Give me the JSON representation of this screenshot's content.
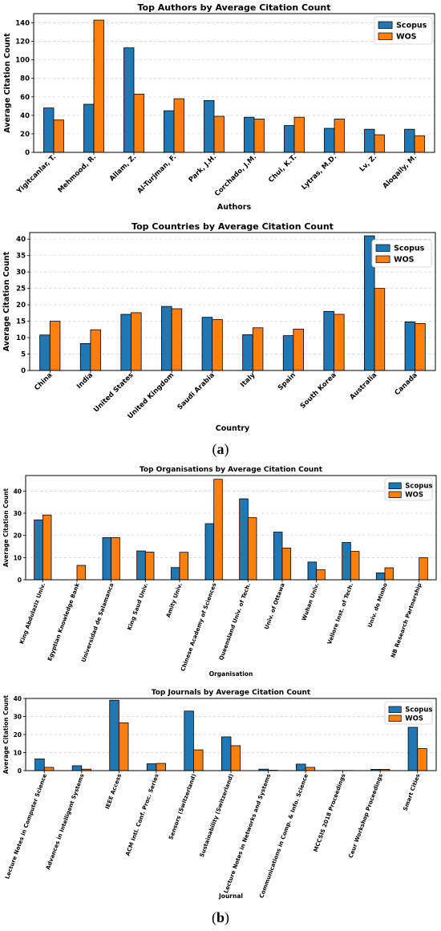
{
  "colors": {
    "scopus": "#1f77b4",
    "wos": "#ff7f0e",
    "grid": "#cccccc"
  },
  "captions": {
    "a": "(a)",
    "b": "(b)"
  },
  "chart_data": [
    {
      "type": "bar",
      "title": "Top Authors by Average Citation Count",
      "xlabel": "Authors",
      "ylabel": "Average Citation Count",
      "ylim": [
        0,
        150
      ],
      "yticks": [
        0,
        20,
        40,
        60,
        80,
        100,
        120,
        140
      ],
      "grid": "horizontal dashed",
      "legend": "top-right",
      "categories": [
        "Yigitcanlar, T.",
        "Mehmood, R.",
        "Allam, Z.",
        "Al-Turjman, F.",
        "Park, J.H.",
        "Corchado, J.M.",
        "Chui, K.T.",
        "Lytras, M.D.",
        "Lv, Z.",
        "Aloqaily, M."
      ],
      "series": [
        {
          "name": "Scopus",
          "values": [
            48,
            52,
            113,
            45,
            56,
            38,
            29,
            26,
            25,
            25
          ]
        },
        {
          "name": "WOS",
          "values": [
            35,
            143,
            63,
            58,
            39,
            36,
            38,
            36,
            19,
            18
          ]
        }
      ]
    },
    {
      "type": "bar",
      "title": "Top Countries by Average Citation Count",
      "xlabel": "Country",
      "ylabel": "Average Citation Count",
      "ylim": [
        0,
        42
      ],
      "yticks": [
        0,
        5,
        10,
        15,
        20,
        25,
        30,
        35,
        40
      ],
      "grid": "horizontal dashed",
      "legend": "top-right",
      "categories": [
        "China",
        "India",
        "United States",
        "United Kingdom",
        "Saudi Arabia",
        "Italy",
        "Spain",
        "South Korea",
        "Australia",
        "Canada"
      ],
      "series": [
        {
          "name": "Scopus",
          "values": [
            10.8,
            8.2,
            17.1,
            19.5,
            16.2,
            10.9,
            10.6,
            18.0,
            41.0,
            14.8
          ]
        },
        {
          "name": "WOS",
          "values": [
            15.0,
            12.4,
            17.6,
            18.8,
            15.5,
            13.0,
            12.6,
            17.1,
            25.0,
            14.3
          ]
        }
      ]
    },
    {
      "type": "bar",
      "title": "Top Organisations by Average Citation Count",
      "xlabel": "Organisation",
      "ylabel": "Average Citation Count",
      "ylim": [
        0,
        47
      ],
      "yticks": [
        0,
        10,
        20,
        30,
        40
      ],
      "grid": "horizontal dashed",
      "legend": "top-right",
      "categories": [
        "King Abdulaziz Univ.",
        "Egyptian Knowledge Bank",
        "Universidad de Salamanca",
        "King Saud Univ.",
        "Amity Univ.",
        "Chinese Academy of Sciences",
        "Queensland Univ. of Tech.",
        "Univ. of Ottawa",
        "Wuhan Univ.",
        "Vellore Inst. of Tech.",
        "Univ. do Minho",
        "NB Research Partnership"
      ],
      "series": [
        {
          "name": "Scopus",
          "values": [
            27,
            0,
            19,
            13,
            5.5,
            25.3,
            36.5,
            21.5,
            8,
            16.8,
            3.1,
            0
          ]
        },
        {
          "name": "WOS",
          "values": [
            29.2,
            6.5,
            19,
            12.5,
            12.4,
            45.3,
            28,
            14.3,
            4.5,
            12.8,
            5.4,
            10
          ]
        }
      ]
    },
    {
      "type": "bar",
      "title": "Top Journals by Average Citation Count",
      "xlabel": "Journal",
      "ylabel": "Average Citation Count",
      "ylim": [
        0,
        40
      ],
      "yticks": [
        0,
        10,
        20,
        30,
        40
      ],
      "grid": "horizontal dashed",
      "legend": "top-right",
      "categories": [
        "Lecture Notes in Computer Science",
        "Advances in Intelligent Systems",
        "IEEE Access",
        "ACM Intl. Conf. Proc. Series",
        "Sensors (Switzerland)",
        "Sustainability (Switzerland)",
        "Lecture Notes in Networks and Systems",
        "Communications in Comp. & Info. Science",
        "MCCSIS 2018 Proceedings",
        "Ceur Workshop Proceedings",
        "Smart Cities"
      ],
      "series": [
        {
          "name": "Scopus",
          "values": [
            6.5,
            2.7,
            39,
            3.8,
            33,
            18.7,
            0.8,
            3.6,
            0.1,
            0.7,
            24
          ]
        },
        {
          "name": "WOS",
          "values": [
            1.8,
            0.8,
            26.5,
            4,
            11.5,
            13.8,
            0.2,
            1.8,
            0.1,
            0.7,
            12.2
          ]
        }
      ]
    }
  ]
}
